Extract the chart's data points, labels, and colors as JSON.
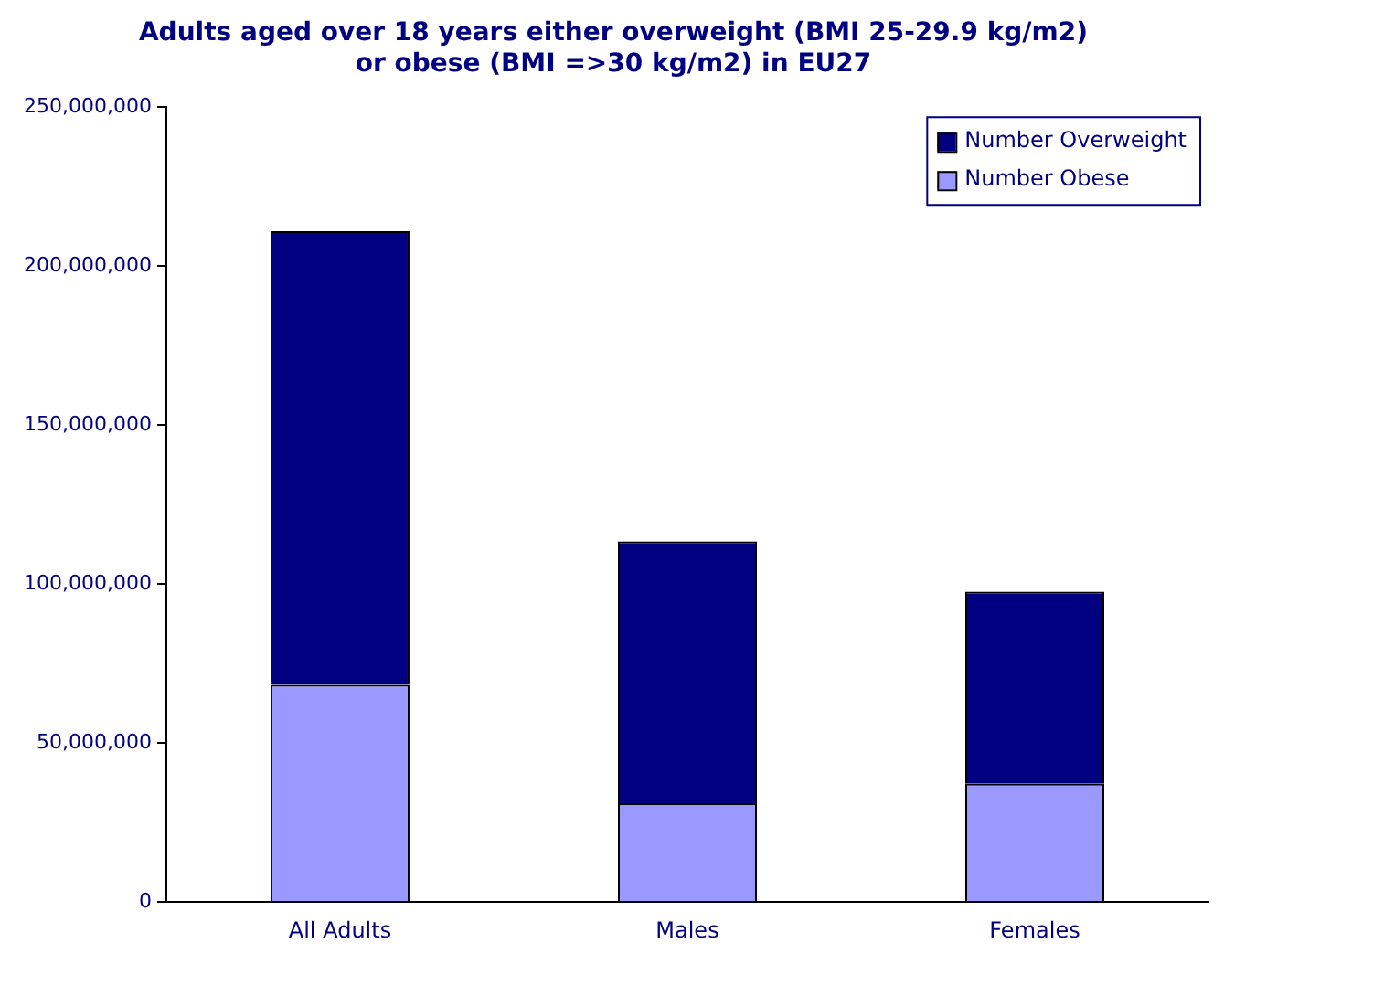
{
  "chart_data": {
    "type": "bar",
    "title": [
      "Adults aged over 18 years either overweight (BMI 25-29.9 kg/m2)",
      "or obese (BMI =>30 kg/m2) in EU27"
    ],
    "categories": [
      "All Adults",
      "Males",
      "Females"
    ],
    "series": [
      {
        "name": "Number Obese",
        "color": "#9999ff",
        "values": [
          68300000,
          31100000,
          37200000
        ]
      },
      {
        "name": "Number Overweight",
        "color": "#000080",
        "values": [
          142700000,
          82300000,
          60400000
        ]
      }
    ],
    "stacked": true,
    "ylim": [
      0,
      250000000
    ],
    "yticks": [
      0,
      {
        "value": 50000000,
        "label": "50,000,000"
      },
      {
        "value": 100000000,
        "label": "100,000,000"
      },
      {
        "value": 150000000,
        "label": "150,000,000"
      },
      {
        "value": 200000000,
        "label": "200,000,000"
      },
      {
        "value": 250000000,
        "label": "250,000,000"
      }
    ],
    "grid": false,
    "legend": "top right"
  }
}
